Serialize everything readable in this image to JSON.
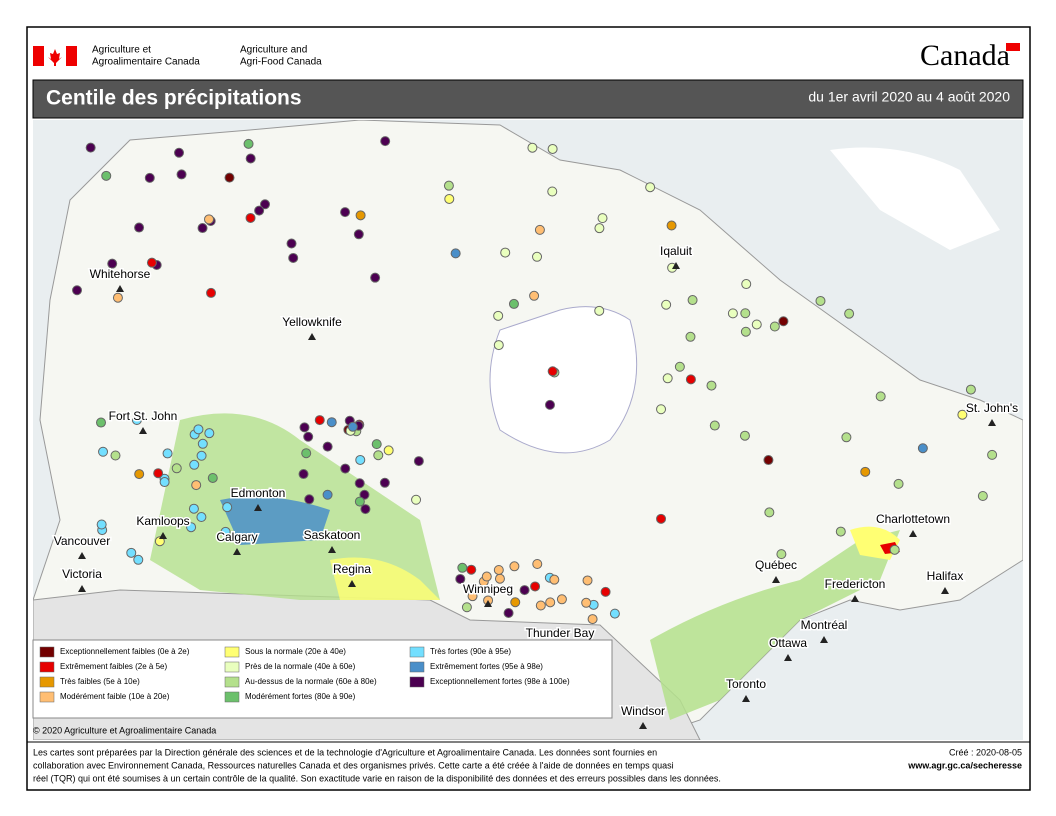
{
  "header": {
    "dept_fr": [
      "Agriculture et",
      "Agroalimentaire Canada"
    ],
    "dept_en": [
      "Agriculture and",
      "Agri-Food Canada"
    ],
    "wordmark": "Canada"
  },
  "title_bar": {
    "title": "Centile des précipitations",
    "period": "du 1er avril 2020 au 4 août 2020"
  },
  "map": {
    "labels": [
      "Whitehorse",
      "Yellowknife",
      "Iqaluit",
      "Fort St. John",
      "St. John's",
      "Edmonton",
      "Kamloops",
      "Vancouver",
      "Calgary",
      "Saskatoon",
      "Charlottetown",
      "Victoria",
      "Regina",
      "Québec",
      "Winnipeg",
      "Fredericton",
      "Halifax",
      "Montréal",
      "Thunder Bay",
      "Ottawa",
      "Toronto",
      "Windsor"
    ]
  },
  "legend": {
    "items": [
      {
        "label": "Exceptionnellement faibles (0e à 2e)",
        "color": "#730000"
      },
      {
        "label": "Extrêmement faibles (2e à 5e)",
        "color": "#e60000"
      },
      {
        "label": "Très faibles (5e à 10e)",
        "color": "#e69800"
      },
      {
        "label": "Modérément faible (10e à 20e)",
        "color": "#ffbe73"
      },
      {
        "label": "Sous la normale (20e à 40e)",
        "color": "#ffff73"
      },
      {
        "label": "Près de la normale (40e à 60e)",
        "color": "#e9ffbe"
      },
      {
        "label": "Au-dessus de la normale (60e à 80e)",
        "color": "#b4e08c"
      },
      {
        "label": "Modérément fortes (80e à 90e)",
        "color": "#6cc06c"
      },
      {
        "label": "Très fortes (90e à 95e)",
        "color": "#73dfff"
      },
      {
        "label": "Extrêmement fortes (95e à 98e)",
        "color": "#4a8fc9"
      },
      {
        "label": "Exceptionnellement fortes (98e à 100e)",
        "color": "#4c0051"
      }
    ]
  },
  "copyright": "© 2020 Agriculture et Agroalimentaire Canada",
  "footer": {
    "lines": [
      "Les cartes sont préparées par la Direction générale des sciences et de la technologie d'Agriculture et Agroalimentaire Canada. Les données sont fournies en",
      "collaboration avec Environnement Canada, Ressources naturelles Canada et des organismes privés. Cette carte a été créée à l'aide de données en temps quasi",
      "réel (TQR) qui ont été soumises à un certain contrôle de la qualité. Son exactitude varie en raison de la disponibilité des données et des erreurs possibles dans les données."
    ],
    "created": "Créé : 2020-08-05",
    "url": "www.agr.gc.ca/secheresse"
  }
}
